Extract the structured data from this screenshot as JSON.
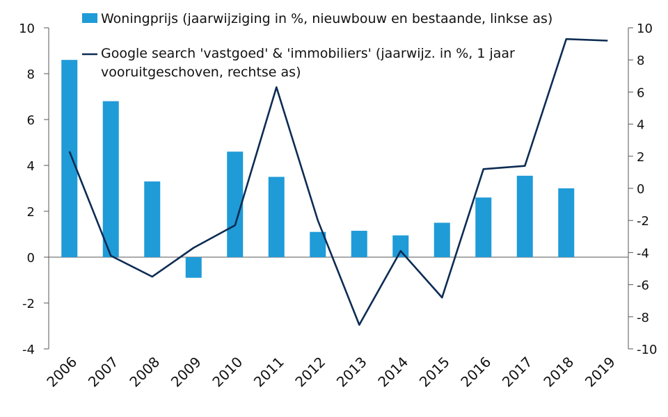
{
  "chart_data": {
    "type": "bar+line",
    "categories": [
      "2006",
      "2007",
      "2008",
      "2009",
      "2010",
      "2011",
      "2012",
      "2013",
      "2014",
      "2015",
      "2016",
      "2017",
      "2018",
      "2019"
    ],
    "series": [
      {
        "name": "Woningprijs (jaarwijziging in %, nieuwbouw en bestaande, linkse as)",
        "type": "bar",
        "axis": "left",
        "color": "#1f9bd7",
        "values": [
          8.6,
          6.8,
          3.3,
          -0.9,
          4.6,
          3.5,
          1.1,
          1.15,
          0.95,
          1.5,
          2.6,
          3.55,
          3.0,
          null
        ]
      },
      {
        "name_lines": [
          "Google search 'vastgoed' & 'immobiliers' (jaarwijz. in %, 1 jaar",
          "vooruitgeschoven, rechtse as)"
        ],
        "type": "line",
        "axis": "right",
        "color": "#0d2c54",
        "values": [
          2.3,
          -4.2,
          -5.5,
          -3.7,
          -2.3,
          6.3,
          -2.0,
          -8.5,
          -3.9,
          -6.8,
          1.2,
          1.4,
          9.3,
          9.2
        ]
      }
    ],
    "left_axis": {
      "min": -4,
      "max": 10,
      "ticks": [
        -4,
        -2,
        0,
        2,
        4,
        6,
        8,
        10
      ]
    },
    "right_axis": {
      "min": -10,
      "max": 10,
      "ticks": [
        -10,
        -8,
        -6,
        -4,
        -2,
        0,
        2,
        4,
        6,
        8,
        10
      ]
    },
    "grid": false,
    "legend_position": "top-center"
  }
}
